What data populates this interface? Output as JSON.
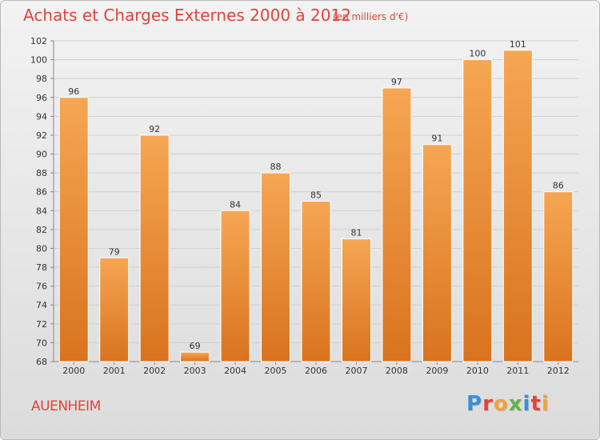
{
  "header": {
    "title": "Achats et Charges Externes 2000 à 2012",
    "subtitle": "(en milliers d'€)"
  },
  "footer": {
    "commune": "AUENHEIM",
    "logo_text": "Proxiti",
    "logo_colors": [
      "#3b8fd8",
      "#e0443c",
      "#f2a23a",
      "#5fb54a",
      "#3b8fd8",
      "#e0443c",
      "#f2a23a"
    ]
  },
  "colors": {
    "bar_top": "#f6a653",
    "bar_bottom": "#d9731e",
    "bar_edge": "#ffffff",
    "title": "#e0443c",
    "grid": "#d0d0d0",
    "axis": "#888888"
  },
  "chart_data": {
    "type": "bar",
    "title": "Achats et Charges Externes 2000 à 2012",
    "subtitle": "(en milliers d'€)",
    "categories": [
      "2000",
      "2001",
      "2002",
      "2003",
      "2004",
      "2005",
      "2006",
      "2007",
      "2008",
      "2009",
      "2010",
      "2011",
      "2012"
    ],
    "values": [
      96,
      79,
      92,
      69,
      84,
      88,
      85,
      81,
      97,
      91,
      100,
      101,
      86
    ],
    "ylim": [
      68,
      102
    ],
    "yticks": [
      68,
      70,
      72,
      74,
      76,
      78,
      80,
      82,
      84,
      86,
      88,
      90,
      92,
      94,
      96,
      98,
      100,
      102
    ],
    "grid": true,
    "data_labels": true
  }
}
